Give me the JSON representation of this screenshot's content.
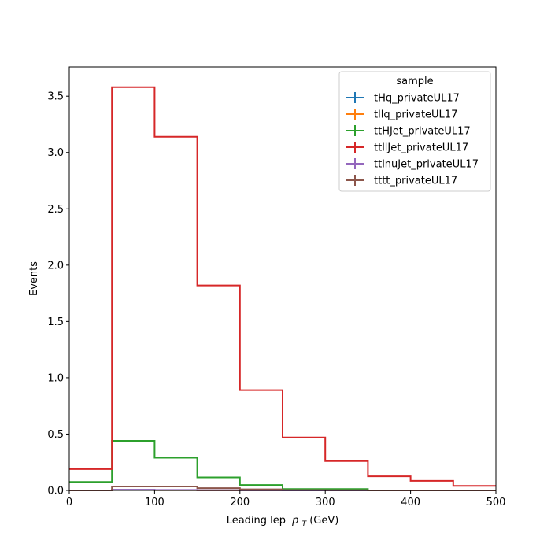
{
  "chart_data": {
    "type": "histogram",
    "xlabel": "Leading lep",
    "xlabel_sub": "T",
    "xlabel_unit": " (GeV)",
    "xlabel_symbol": "p",
    "ylabel": "Events",
    "xlim": [
      0,
      500
    ],
    "ylim": [
      0,
      3.76
    ],
    "xticks": [
      0,
      100,
      200,
      300,
      400,
      500
    ],
    "yticks": [
      0.0,
      0.5,
      1.0,
      1.5,
      2.0,
      2.5,
      3.0,
      3.5
    ],
    "ytick_labels": [
      "0.0",
      "0.5",
      "1.0",
      "1.5",
      "2.0",
      "2.5",
      "3.0",
      "3.5"
    ],
    "grid": false,
    "legend": {
      "title": "sample",
      "placement": "top-right"
    },
    "bin_edges": [
      0,
      50,
      100,
      150,
      200,
      250,
      300,
      350,
      400,
      450,
      500
    ],
    "series": [
      {
        "name": "tHq_privateUL17",
        "color": "#1f77b4",
        "values": [
          0.0,
          0.005,
          0.003,
          0.001,
          0.001,
          0.0,
          0.0,
          0.0,
          0.0,
          0.0
        ]
      },
      {
        "name": "tllq_privateUL17",
        "color": "#ff7f0e",
        "values": [
          0.0,
          0.004,
          0.003,
          0.001,
          0.001,
          0.0,
          0.0,
          0.0,
          0.0,
          0.0
        ]
      },
      {
        "name": "ttHJet_privateUL17",
        "color": "#2ca02c",
        "values": [
          0.075,
          0.44,
          0.29,
          0.115,
          0.048,
          0.012,
          0.012,
          0.0,
          0.0,
          0.0
        ]
      },
      {
        "name": "ttllJet_privateUL17",
        "color": "#d62728",
        "values": [
          0.19,
          3.58,
          3.14,
          1.82,
          0.89,
          0.47,
          0.26,
          0.125,
          0.085,
          0.04
        ]
      },
      {
        "name": "ttlnuJet_privateUL17",
        "color": "#9467bd",
        "values": [
          0.0,
          0.006,
          0.004,
          0.002,
          0.001,
          0.0,
          0.0,
          0.0,
          0.0,
          0.0
        ]
      },
      {
        "name": "tttt_privateUL17",
        "color": "#8c564b",
        "values": [
          0.0,
          0.035,
          0.035,
          0.02,
          0.01,
          0.003,
          0.002,
          0.0,
          0.0,
          0.0
        ]
      }
    ]
  }
}
